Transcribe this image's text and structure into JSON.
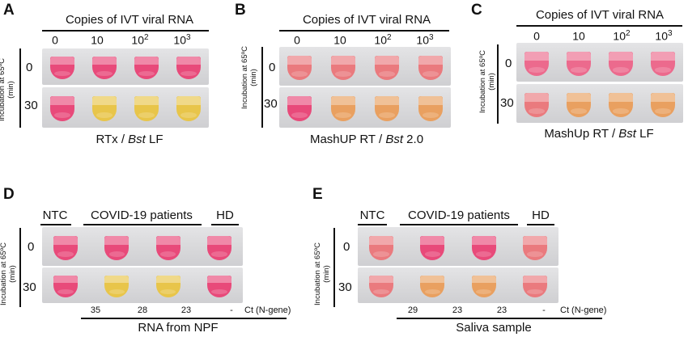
{
  "colors": {
    "pink": "#e84a7a",
    "pink_light": "#ec6a8d",
    "salmon": "#ea7a7e",
    "orange": "#e9a060",
    "yellow": "#e8c54a",
    "yellow_deep": "#e4b43a"
  },
  "panels_top": [
    {
      "id": "A",
      "letter": "A",
      "header": "Copies of IVT viral RNA",
      "columns": [
        "0",
        "10",
        "10",
        "10"
      ],
      "column_sups": [
        "",
        "",
        "2",
        "3"
      ],
      "rows": [
        "0",
        "30"
      ],
      "y_axis": [
        "Incubation at 65ºC",
        "(min)"
      ],
      "caption_pre": "RTx / ",
      "caption_em": "Bst",
      "caption_post": " LF",
      "tube_colors": [
        [
          "pink",
          "pink",
          "pink",
          "pink"
        ],
        [
          "pink",
          "yellow",
          "yellow",
          "yellow"
        ]
      ]
    },
    {
      "id": "B",
      "letter": "B",
      "header": "Copies of IVT viral RNA",
      "columns": [
        "0",
        "10",
        "10",
        "10"
      ],
      "column_sups": [
        "",
        "",
        "2",
        "3"
      ],
      "rows": [
        "0",
        "30"
      ],
      "y_axis": [
        "Incubation at 65ºC",
        "(min)"
      ],
      "caption_pre": "MashUP RT / ",
      "caption_em": "Bst",
      "caption_post": " 2.0",
      "tube_colors": [
        [
          "salmon",
          "salmon",
          "salmon",
          "salmon"
        ],
        [
          "pink",
          "orange",
          "orange",
          "orange"
        ]
      ]
    },
    {
      "id": "C",
      "letter": "C",
      "header": "Copies of IVT viral RNA",
      "columns": [
        "0",
        "10",
        "10",
        "10"
      ],
      "column_sups": [
        "",
        "",
        "2",
        "3"
      ],
      "rows": [
        "0",
        "30"
      ],
      "y_axis": [
        "Incubation at 65ºC",
        "(min)"
      ],
      "caption_pre": "MashUp RT / ",
      "caption_em": "Bst",
      "caption_post": " LF",
      "tube_colors": [
        [
          "pink_light",
          "pink_light",
          "pink_light",
          "pink_light"
        ],
        [
          "salmon",
          "orange",
          "orange",
          "orange"
        ]
      ]
    }
  ],
  "panels_bottom": [
    {
      "id": "D",
      "letter": "D",
      "groups": [
        "NTC",
        "COVID-19 patients",
        "HD"
      ],
      "rows": [
        "0",
        "30"
      ],
      "y_axis": [
        "Incubation at 65ºC",
        "(min)"
      ],
      "ct_values": [
        "35",
        "28",
        "23",
        "-"
      ],
      "ct_label": "Ct (N-gene)",
      "caption": "RNA  from NPF",
      "tube_colors": [
        [
          "pink",
          "pink",
          "pink",
          "pink"
        ],
        [
          "pink",
          "yellow",
          "yellow",
          "pink"
        ]
      ]
    },
    {
      "id": "E",
      "letter": "E",
      "groups": [
        "NTC",
        "COVID-19 patients",
        "HD"
      ],
      "rows": [
        "0",
        "30"
      ],
      "y_axis": [
        "Incubation at 65ºC",
        "(min)"
      ],
      "ct_values": [
        "29",
        "23",
        "23",
        "-"
      ],
      "ct_label": "Ct (N-gene)",
      "caption": "Saliva sample",
      "tube_colors": [
        [
          "salmon",
          "pink",
          "pink",
          "salmon"
        ],
        [
          "salmon",
          "orange",
          "orange",
          "salmon"
        ]
      ]
    }
  ]
}
